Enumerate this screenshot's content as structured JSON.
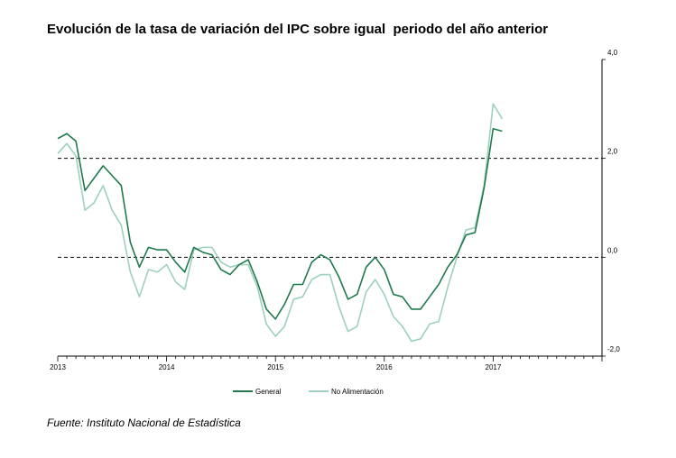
{
  "chart_data": {
    "type": "line",
    "title": "Evolución de la tasa de variación del IPC sobre igual  periodo del año anterior",
    "source": "Fuente: Instituto Nacional de Estadística",
    "ylim": [
      -2.0,
      4.0
    ],
    "yticks": [
      "4,0",
      "2,0",
      "0,0",
      "-2,0"
    ],
    "y_axis_side": "right",
    "reference_lines": [
      2.0,
      0.0
    ],
    "grid": false,
    "legend_position": "bottom-center",
    "x_start_year": 2013,
    "x_end_year": 2018,
    "x_year_labels": [
      "2013",
      "2014",
      "2015",
      "2016",
      "2017"
    ],
    "series": [
      {
        "name": "General",
        "color": "#1f7a4d",
        "values": [
          2.4,
          2.5,
          2.35,
          1.35,
          1.6,
          1.85,
          1.65,
          1.45,
          0.3,
          -0.2,
          0.2,
          0.15,
          0.15,
          -0.1,
          -0.3,
          0.2,
          0.1,
          0.05,
          -0.25,
          -0.35,
          -0.15,
          -0.05,
          -0.5,
          -1.05,
          -1.25,
          -0.95,
          -0.55,
          -0.55,
          -0.1,
          0.05,
          -0.05,
          -0.4,
          -0.85,
          -0.75,
          -0.2,
          0.0,
          -0.25,
          -0.75,
          -0.8,
          -1.05,
          -1.05,
          -0.8,
          -0.55,
          -0.2,
          0.05,
          0.45,
          0.5,
          1.4,
          2.6,
          2.55
        ]
      },
      {
        "name": "No Alimentación",
        "color": "#9fd0bf",
        "values": [
          2.1,
          2.3,
          2.05,
          0.95,
          1.1,
          1.45,
          0.95,
          0.65,
          -0.3,
          -0.8,
          -0.25,
          -0.3,
          -0.15,
          -0.5,
          -0.65,
          0.15,
          0.2,
          0.2,
          -0.1,
          -0.2,
          -0.15,
          -0.15,
          -0.6,
          -1.35,
          -1.6,
          -1.4,
          -0.85,
          -0.8,
          -0.45,
          -0.35,
          -0.35,
          -1.0,
          -1.5,
          -1.4,
          -0.7,
          -0.45,
          -0.75,
          -1.2,
          -1.4,
          -1.7,
          -1.65,
          -1.35,
          -1.3,
          -0.6,
          0.0,
          0.55,
          0.6,
          1.45,
          3.1,
          2.8
        ]
      }
    ]
  }
}
